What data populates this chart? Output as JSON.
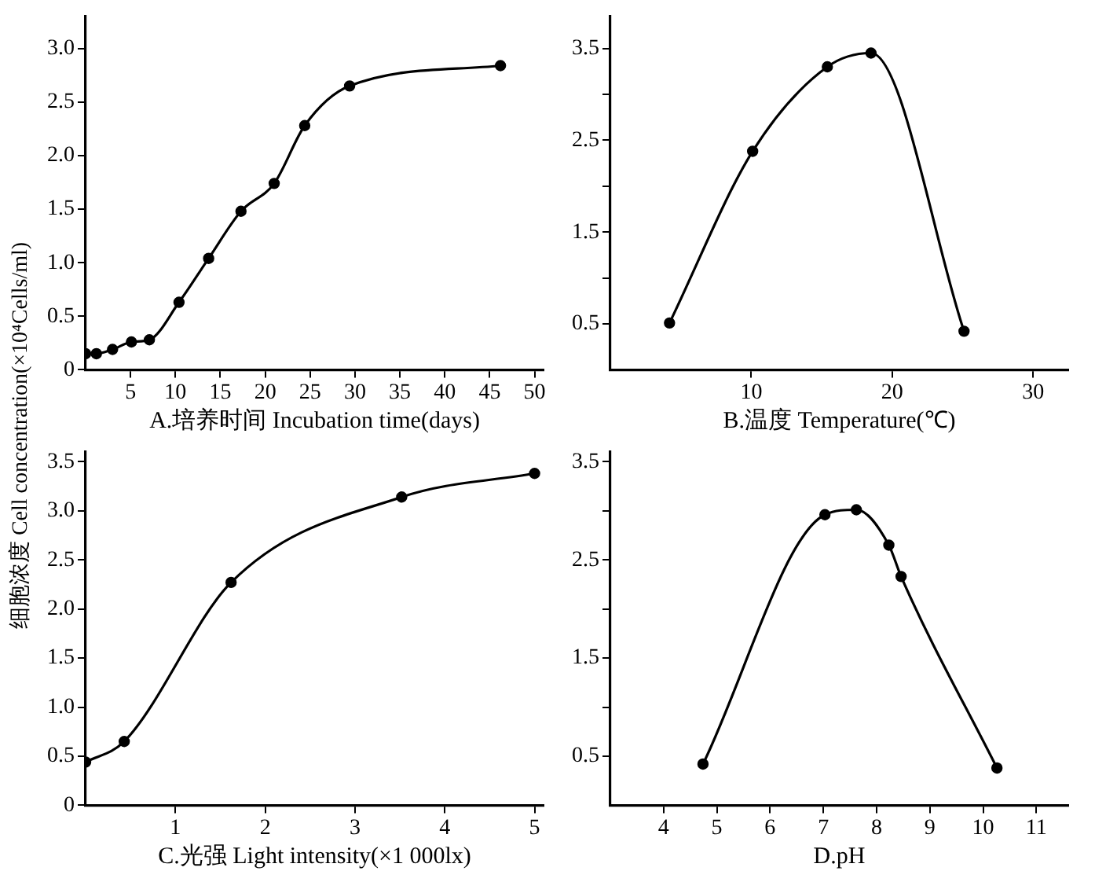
{
  "chart_data": [
    {
      "type": "line",
      "xlabel": "A.培养时间 Incubation time(days)",
      "x": [
        0,
        1.2,
        3,
        5.1,
        7.1,
        10.4,
        13.7,
        17.3,
        21,
        24.4,
        29.4,
        46.2
      ],
      "series": [
        {
          "color": "#000000",
          "values": [
            0.15,
            0.15,
            0.19,
            0.26,
            0.28,
            0.63,
            1.04,
            1.48,
            1.74,
            2.28,
            2.65,
            2.84
          ]
        }
      ],
      "xlim": [
        0,
        51
      ],
      "xticks": [
        5,
        10,
        15,
        20,
        25,
        30,
        35,
        40,
        45,
        50
      ],
      "ylim": [
        0,
        3.3
      ],
      "yticks": [
        0,
        0.5,
        {
          "value": 1,
          "label": "1.0"
        },
        1.5,
        {
          "value": 2,
          "label": "2.0"
        },
        2.5,
        {
          "value": 3,
          "label": "3.0"
        }
      ],
      "grid": false,
      "legend": false,
      "marker": "circle",
      "line_style": "solid"
    },
    {
      "type": "line",
      "xlabel": "B.温度 Temperature(℃)",
      "x": [
        4.2,
        10.1,
        15.4,
        18.5,
        25.1
      ],
      "series": [
        {
          "color": "#000000",
          "values": [
            0.51,
            2.38,
            3.3,
            3.45,
            0.42
          ]
        }
      ],
      "xlim": [
        0,
        32.5
      ],
      "xticks": [
        10,
        20,
        30
      ],
      "ylim": [
        0,
        3.85
      ],
      "yticks": [
        0.5,
        {
          "value": 1,
          "label": null
        },
        1.5,
        {
          "value": 2,
          "label": null
        },
        2.5,
        {
          "value": 3,
          "label": null
        },
        3.5
      ],
      "grid": false,
      "legend": false,
      "marker": "circle",
      "line_style": "solid"
    },
    {
      "type": "line",
      "xlabel": "C.光强 Light intensity(×1 000lx)",
      "ylabel": "细胞浓度 Cell concentration(×10⁴Cells/ml)",
      "x": [
        0,
        0.43,
        1.62,
        3.52,
        5.0
      ],
      "series": [
        {
          "color": "#000000",
          "values": [
            0.44,
            0.65,
            2.27,
            3.14,
            3.38
          ]
        }
      ],
      "xlim": [
        0,
        5.1
      ],
      "xticks": [
        1,
        2,
        3,
        4,
        5
      ],
      "ylim": [
        0,
        3.6
      ],
      "yticks": [
        0,
        0.5,
        {
          "value": 1,
          "label": "1.0"
        },
        1.5,
        {
          "value": 2,
          "label": "2.0"
        },
        2.5,
        {
          "value": 3,
          "label": "3.0"
        },
        3.5
      ],
      "grid": false,
      "legend": false,
      "marker": "circle",
      "line_style": "solid"
    },
    {
      "type": "line",
      "xlabel": "D.pH",
      "x": [
        4.74,
        7.03,
        7.62,
        8.23,
        8.46,
        10.26
      ],
      "series": [
        {
          "color": "#000000",
          "values": [
            0.42,
            2.96,
            3.01,
            2.65,
            2.33,
            0.38
          ]
        }
      ],
      "xlim": [
        3,
        11.6
      ],
      "xticks": [
        4,
        5,
        6,
        7,
        8,
        9,
        10,
        11
      ],
      "ylim": [
        0,
        3.6
      ],
      "yticks": [
        0.5,
        {
          "value": 1,
          "label": null
        },
        1.5,
        {
          "value": 2,
          "label": null
        },
        2.5,
        {
          "value": 3,
          "label": null
        },
        3.5
      ],
      "grid": false,
      "legend": false,
      "marker": "circle",
      "line_style": "solid"
    }
  ]
}
